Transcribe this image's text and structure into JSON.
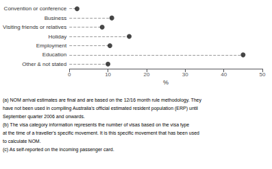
{
  "chart_data": {
    "type": "lollipop",
    "orientation": "horizontal",
    "categories": [
      "Convention or conference",
      "Business",
      "Visiting friends or relatives",
      "Holiday",
      "Employment",
      "Education",
      "Other & not stated"
    ],
    "values": [
      2.0,
      11.0,
      8.5,
      15.5,
      10.5,
      45.0,
      10.0
    ],
    "color": "#1a1a1a",
    "marker": "circle",
    "line_style": "dashed",
    "xlabel": "%",
    "xlim": [
      0,
      50
    ],
    "xticks": [
      0,
      10,
      20,
      30,
      40,
      50
    ],
    "grid": false,
    "annotations": [
      "(a) NOM arrival estimates are final and are based on the 12/16 month rule methodology. They",
      "have not been used in compiling Australia's official estimated resident population (ERP) until",
      "September quarter 2006 and onwards.",
      "(b) The visa category information represents the number of visas based on the visa type",
      "at the time of a traveller's specific movement. It is this specific movement that has been used",
      "to calculate NOM.",
      "(c) As self-reported on the incoming passenger card."
    ]
  }
}
